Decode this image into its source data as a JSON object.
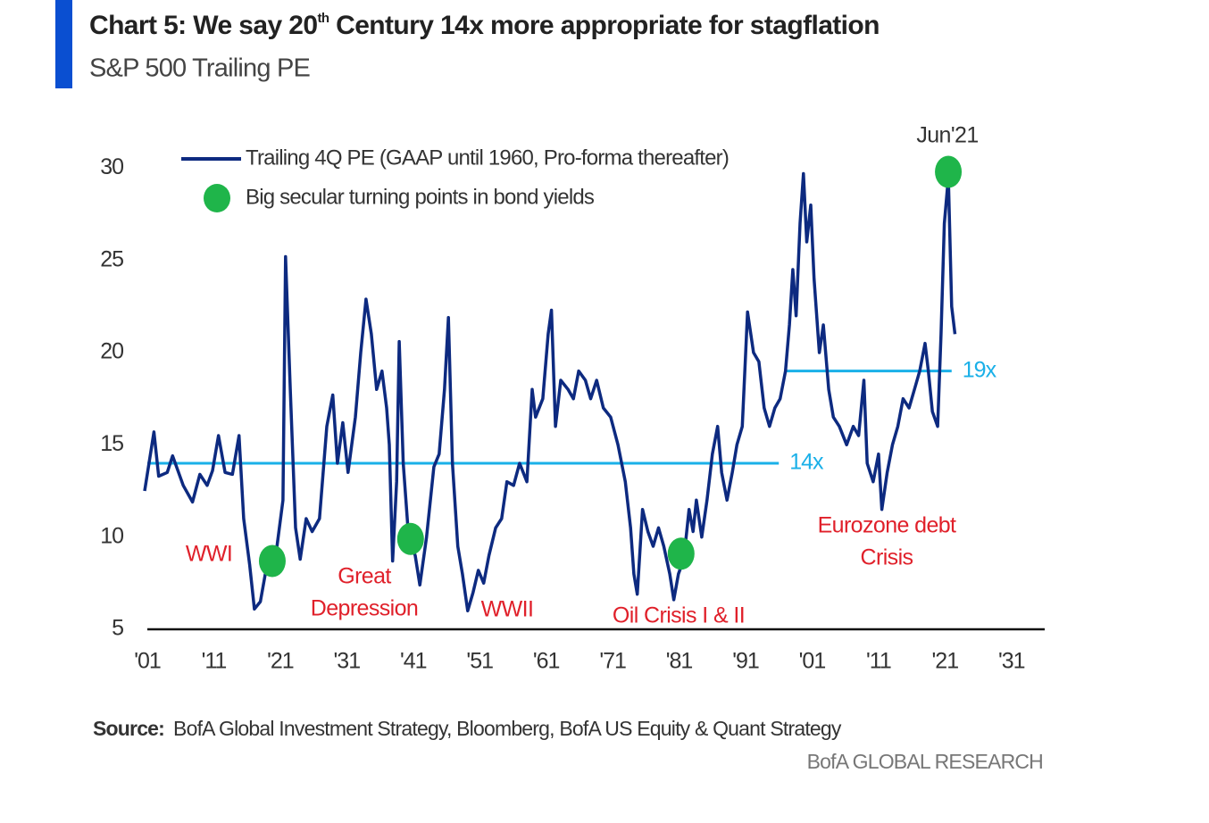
{
  "chart_data": {
    "type": "line",
    "title": [
      "Chart 5: We say 20",
      "th",
      " Century 14x more appropriate for stagflation"
    ],
    "subtitle": "S&P 500 Trailing PE",
    "source_label": "Source:",
    "source": "BofA Global Investment Strategy, Bloomberg, BofA US Equity & Quant Strategy",
    "brand": "BofA GLOBAL RESEARCH",
    "xlim": [
      1901,
      2036
    ],
    "xticks": [
      {
        "value": 1901,
        "label": "'01"
      },
      {
        "value": 1911,
        "label": "'11"
      },
      {
        "value": 1921,
        "label": "'21"
      },
      {
        "value": 1931,
        "label": "'31"
      },
      {
        "value": 1941,
        "label": "'41"
      },
      {
        "value": 1951,
        "label": "'51"
      },
      {
        "value": 1961,
        "label": "'61"
      },
      {
        "value": 1971,
        "label": "'71"
      },
      {
        "value": 1981,
        "label": "'81"
      },
      {
        "value": 1991,
        "label": "'91"
      },
      {
        "value": 2001,
        "label": "'01"
      },
      {
        "value": 2011,
        "label": "'11"
      },
      {
        "value": 2021,
        "label": "'21"
      },
      {
        "value": 2031,
        "label": "'31"
      }
    ],
    "ylim": [
      5,
      32
    ],
    "yticks": [
      5,
      10,
      15,
      20,
      25,
      30
    ],
    "series": [
      {
        "name": "Trailing 4Q PE (GAAP until 1960, Pro-forma thereafter)",
        "color": "#0d2a80",
        "type": "line",
        "x": [
          1900.6,
          1902,
          1902.7,
          1904,
          1904.8,
          1906.4,
          1907.8,
          1908.9,
          1910,
          1910.8,
          1911.7,
          1912.7,
          1913.8,
          1914.8,
          1915.5,
          1916.4,
          1917.1,
          1918,
          1919.1,
          1920.5,
          1921.4,
          1921.8,
          1922.5,
          1923.3,
          1924,
          1924.9,
          1925.8,
          1926.9,
          1928,
          1928.9,
          1929.6,
          1930.4,
          1931.2,
          1932.3,
          1933.1,
          1933.9,
          1934.7,
          1935.5,
          1936.3,
          1937,
          1937.4,
          1937.9,
          1938.5,
          1938.9,
          1939.5,
          1940.3,
          1941.3,
          1942,
          1943,
          1944.1,
          1944.9,
          1945.7,
          1946.3,
          1946.9,
          1947.7,
          1948.4,
          1949.2,
          1950,
          1950.8,
          1951.6,
          1952.4,
          1953.4,
          1954.3,
          1955.1,
          1956.1,
          1957,
          1958.1,
          1958.9,
          1959.4,
          1960.5,
          1961.3,
          1961.8,
          1962.4,
          1963.2,
          1964.3,
          1965.1,
          1965.9,
          1966.9,
          1967.7,
          1968.6,
          1969.6,
          1970.7,
          1971.8,
          1972.9,
          1973.7,
          1974.2,
          1974.7,
          1975.5,
          1976.3,
          1977.1,
          1977.9,
          1978.7,
          1979.6,
          1980.2,
          1980.9,
          1981.7,
          1982.5,
          1983.1,
          1983.6,
          1984.4,
          1985.2,
          1986,
          1986.8,
          1987.4,
          1988.2,
          1989,
          1989.7,
          1990.5,
          1991.3,
          1992.2,
          1993,
          1993.8,
          1994.6,
          1995.4,
          1996.2,
          1997,
          1997.6,
          1998.1,
          1998.6,
          1999.2,
          1999.7,
          2000.2,
          2000.8,
          2001.3,
          2002.1,
          2002.7,
          2003.5,
          2004.2,
          2005.1,
          2006.2,
          2007.2,
          2008,
          2008.8,
          2009.3,
          2010.2,
          2011,
          2011.5,
          2012.3,
          2013.1,
          2013.9,
          2014.7,
          2015.6,
          2016.4,
          2017.2,
          2018,
          2018.5,
          2019.1,
          2019.9,
          2020.4,
          2020.9,
          2021.5,
          2022,
          2022.5
        ],
        "values": [
          12.5,
          15.7,
          13.3,
          13.5,
          14.4,
          12.8,
          11.9,
          13.4,
          12.8,
          13.6,
          15.5,
          13.5,
          13.4,
          15.5,
          11,
          8.5,
          6.1,
          6.5,
          8.7,
          9.5,
          12,
          25.2,
          18,
          10.5,
          8.8,
          11,
          10.3,
          11,
          16,
          17.7,
          14,
          16.2,
          13.5,
          16.5,
          20,
          22.9,
          21,
          18,
          19,
          17,
          15,
          8.7,
          13,
          20.6,
          14,
          10,
          9,
          7.4,
          10,
          13.8,
          14.5,
          18,
          21.9,
          14,
          9.5,
          8,
          6,
          7,
          8.2,
          7.5,
          9,
          10.5,
          11,
          13,
          12.8,
          14,
          13,
          18,
          16.5,
          17.5,
          21,
          22.3,
          16,
          18.5,
          18,
          17.5,
          19,
          18.5,
          17.5,
          18.5,
          17,
          16.5,
          15,
          13,
          10.5,
          8,
          6.9,
          11.5,
          10.3,
          9.5,
          10.5,
          9.5,
          8,
          6.6,
          8,
          8.8,
          11.5,
          10.3,
          12,
          10,
          12,
          14.5,
          16,
          13.5,
          12,
          13.5,
          15,
          16,
          22.2,
          20,
          19.5,
          17,
          16,
          17,
          17.5,
          19,
          21.5,
          24.5,
          22,
          27,
          29.7,
          26,
          28,
          24,
          20,
          21.5,
          18,
          16.5,
          16,
          15,
          16,
          15.5,
          18.5,
          14,
          13,
          14.5,
          11.5,
          13.5,
          15,
          16,
          17.5,
          17,
          18,
          19,
          20.5,
          19,
          16.8,
          16,
          21,
          27,
          29.5,
          22.5,
          21
        ]
      },
      {
        "name": "Big secular turning points in bond yields",
        "color": "#1fb54a",
        "type": "scatter",
        "x": [
          1919.8,
          1940.6,
          1981.3,
          2021.5
        ],
        "values": [
          8.7,
          9.9,
          9.1,
          29.8
        ]
      }
    ],
    "reference_lines": [
      {
        "value": 14,
        "label": "14x",
        "x_range": [
          1901,
          1996
        ],
        "color": "#1ab0e8"
      },
      {
        "value": 19,
        "label": "19x",
        "x_range": [
          1997,
          2022
        ],
        "color": "#1ab0e8"
      }
    ],
    "annotations": [
      "WWI",
      "Great",
      "Depression",
      "WWII",
      "Oil Crisis I & II",
      "Eurozone debt",
      "Crisis",
      "Jun'21"
    ]
  }
}
